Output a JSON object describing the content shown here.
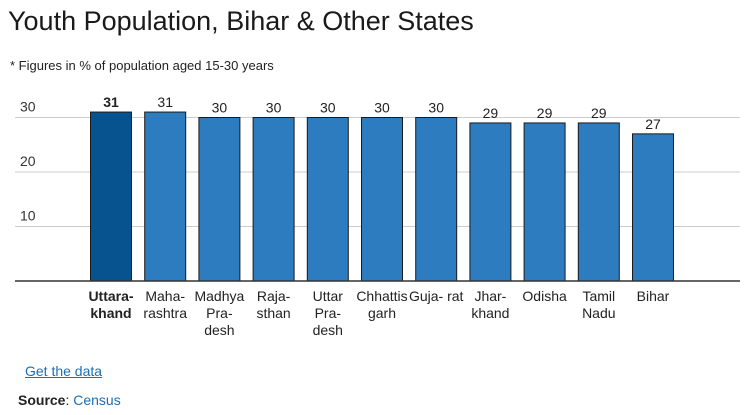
{
  "chart_data": {
    "type": "bar",
    "title": "Youth Population, Bihar & Other States",
    "subtitle": "* Figures in % of population aged 15-30 years",
    "categories": [
      [
        "Uttara-",
        "khand"
      ],
      [
        "Maha-",
        "rashtra"
      ],
      [
        "Madhya",
        "Pra-",
        "desh"
      ],
      [
        "Raja-",
        "sthan"
      ],
      [
        "Uttar",
        "Pra-",
        "desh"
      ],
      [
        "Chhattis",
        "garh"
      ],
      [
        "Guja- rat"
      ],
      [
        "Jhar-",
        "khand"
      ],
      [
        "Odisha"
      ],
      [
        "Tamil",
        "Nadu"
      ],
      [
        "Bihar"
      ]
    ],
    "values": [
      31,
      31,
      30,
      30,
      30,
      30,
      30,
      29,
      29,
      29,
      27
    ],
    "highlight_index": 0,
    "yticks": [
      10,
      20,
      30
    ],
    "ylim": [
      0,
      33
    ],
    "grid": true,
    "colors": {
      "bar": "#2e7cc0",
      "bar_highlight": "#07538f",
      "bar_border": "#1a1a1a",
      "grid": "#cccccc",
      "axis": "#333333"
    }
  },
  "footer": {
    "link_label": "Get the data",
    "source_label": "Source",
    "source_value": "Census"
  }
}
